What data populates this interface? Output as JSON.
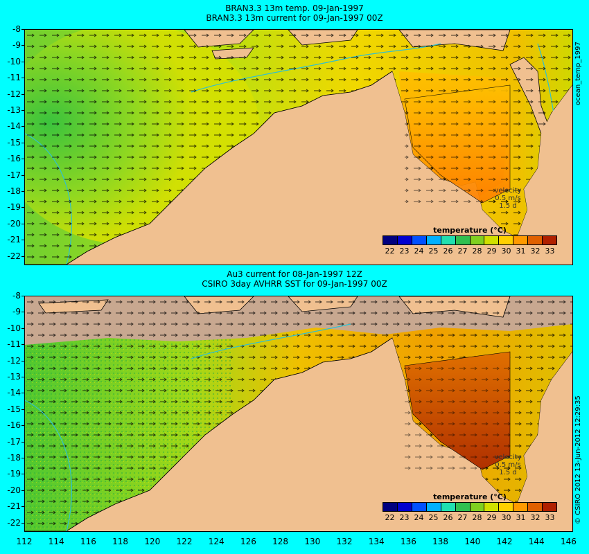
{
  "top": {
    "title_line1": "BRAN3.3 13m temp. 09-Jan-1997",
    "title_line2": "BRAN3.3 13m current for 09-Jan-1997 00Z",
    "side_label": "ocean_temp_1997",
    "velocity_label": "velocity",
    "velocity_value": "0.5 m/s",
    "velocity_days": "1.5 d",
    "legend_title": "temperature (°C)"
  },
  "bottom": {
    "title_line1": "Au3 current for 08-Jan-1997 12Z",
    "title_line2": "CSIRO 3day AVHRR SST for 09-Jan-1997 00Z",
    "side_label": "© CSIRO 2012  13-Jun-2012 12:29:35",
    "velocity_label": "velocity",
    "velocity_value": "0.5 m/s",
    "velocity_days": "1.5 d",
    "legend_title": "temperature (°C)"
  },
  "colorbar": {
    "ticks": [
      "22",
      "23",
      "24",
      "25",
      "26",
      "27",
      "28",
      "29",
      "30",
      "31",
      "32",
      "33"
    ],
    "colors": [
      "#00007f",
      "#0000d0",
      "#0050ff",
      "#00b0ff",
      "#20e0b0",
      "#30c050",
      "#80d020",
      "#d0e000",
      "#ffd000",
      "#ff9a00",
      "#e06000",
      "#b02000"
    ]
  },
  "axes": {
    "y_ticks": [
      "-8",
      "-9",
      "-10",
      "-11",
      "-12",
      "-13",
      "-14",
      "-15",
      "-16",
      "-17",
      "-18",
      "-19",
      "-20",
      "-21",
      "-22"
    ],
    "x_ticks": [
      "112",
      "114",
      "116",
      "118",
      "120",
      "122",
      "124",
      "126",
      "128",
      "130",
      "132",
      "134",
      "136",
      "138",
      "140",
      "142",
      "144",
      "146"
    ]
  },
  "colors": {
    "background": "#00ffff",
    "land": "#f0c090",
    "cloud": "#c8a890"
  }
}
